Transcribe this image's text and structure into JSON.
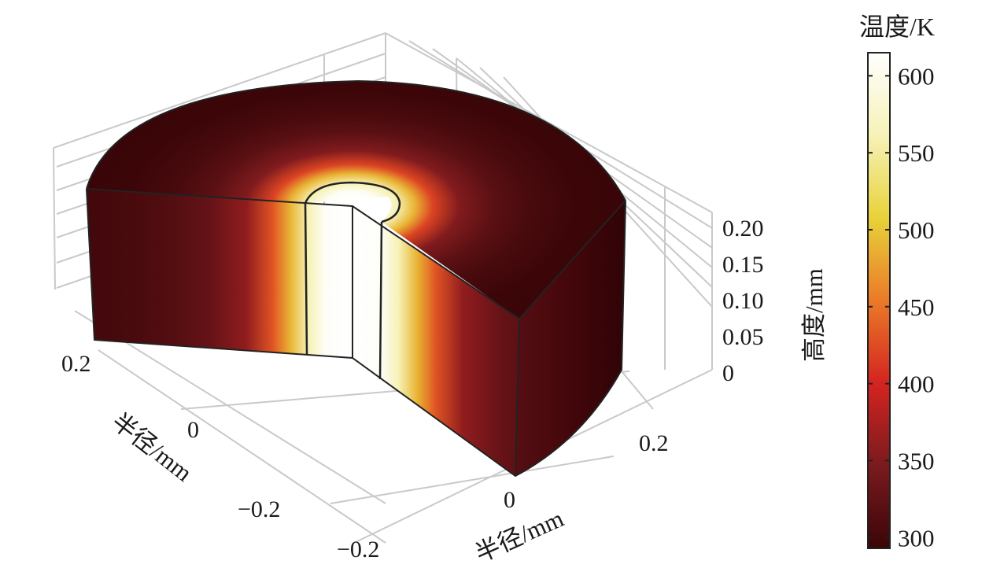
{
  "chart_data": {
    "type": "heatmap",
    "title": "",
    "axes": {
      "x": {
        "label": "半径/mm",
        "ticks": [
          "0.2",
          "0",
          "−0.2"
        ],
        "range": [
          -0.3,
          0.3
        ]
      },
      "y": {
        "label": "半径/mm",
        "ticks": [
          "0",
          "0.2"
        ],
        "range": [
          -0.3,
          0.3
        ]
      },
      "z": {
        "label": "高度/mm",
        "ticks": [
          "0",
          "0.05",
          "0.10",
          "0.15",
          "0.20"
        ],
        "range": [
          0,
          0.2
        ]
      }
    },
    "colorbar": {
      "label": "温度/K",
      "min": 293,
      "max": 615,
      "ticks": [
        300,
        350,
        400,
        450,
        500,
        550,
        600
      ],
      "colormap": [
        "#3a0508",
        "#7a1a1e",
        "#d42420",
        "#ea7a28",
        "#e8d23a",
        "#f6f2b8",
        "#ffffff"
      ]
    },
    "temperature_profile": {
      "radius_mm": [
        0,
        0.03,
        0.05,
        0.07,
        0.09,
        0.12,
        0.16,
        0.2,
        0.25,
        0.3
      ],
      "temperature_K": [
        615,
        610,
        560,
        490,
        430,
        360,
        330,
        315,
        305,
        300
      ]
    },
    "grid": true
  }
}
